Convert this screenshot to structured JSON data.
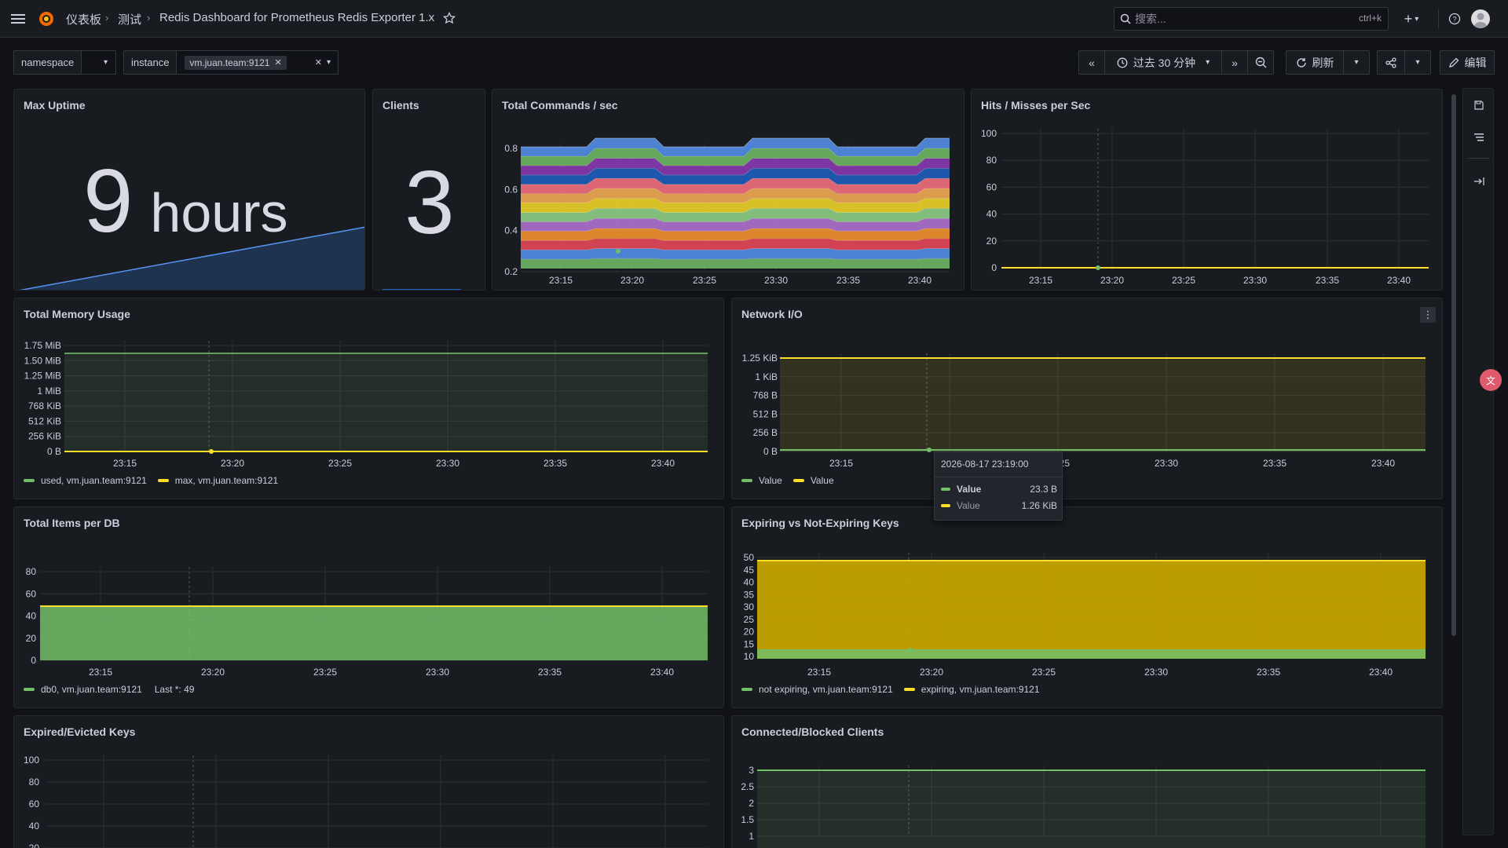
{
  "breadcrumb": {
    "home": "仪表板",
    "folder": "测试",
    "dashboard": "Redis Dashboard for Prometheus Redis Exporter 1.x"
  },
  "search": {
    "placeholder": "搜索...",
    "shortcut": "ctrl+k"
  },
  "variables": {
    "namespace_label": "namespace",
    "instance_label": "instance",
    "instance_value": "vm.juan.team:9121"
  },
  "toolbar": {
    "time_range": "过去 30 分钟",
    "refresh": "刷新",
    "edit": "编辑"
  },
  "colors": {
    "green": "#73bf69",
    "yellow": "#fade2a",
    "blue": "#5794f2",
    "purple": "#b877d9",
    "orange": "#ff9830",
    "red": "#f2495c"
  },
  "x_ticks": [
    "23:15",
    "23:20",
    "23:25",
    "23:30",
    "23:35",
    "23:40"
  ],
  "panels": {
    "max_uptime": {
      "title": "Max Uptime",
      "value": "9",
      "unit": "hours"
    },
    "clients": {
      "title": "Clients",
      "value": "3"
    },
    "commands": {
      "title": "Total Commands / sec"
    },
    "hits": {
      "title": "Hits / Misses per Sec"
    },
    "memory": {
      "title": "Total Memory Usage",
      "legend": [
        "used, vm.juan.team:9121",
        "max, vm.juan.team:9121"
      ]
    },
    "network": {
      "title": "Network I/O",
      "legend": [
        "Value",
        "Value"
      ]
    },
    "items": {
      "title": "Total Items per DB",
      "legend": [
        "db0, vm.juan.team:9121"
      ],
      "last": "Last *: 49"
    },
    "expiring": {
      "title": "Expiring vs Not-Expiring Keys",
      "legend": [
        "not expiring, vm.juan.team:9121",
        "expiring, vm.juan.team:9121"
      ]
    },
    "expired": {
      "title": "Expired/Evicted Keys"
    },
    "connected": {
      "title": "Connected/Blocked Clients"
    }
  },
  "tooltip": {
    "time": "2026-08-17 23:19:00",
    "rows": [
      {
        "label": "Value",
        "value": "23.3 B"
      },
      {
        "label": "Value",
        "value": "1.26 KiB"
      }
    ]
  },
  "chart_data": [
    {
      "type": "area",
      "title": "Total Commands / sec",
      "x": [
        "23:15",
        "23:20",
        "23:25",
        "23:30",
        "23:35",
        "23:40"
      ],
      "yticks": [
        "0.2",
        "0.4",
        "0.6",
        "0.8"
      ],
      "ylim": [
        0,
        0.85
      ]
    },
    {
      "type": "line",
      "title": "Hits / Misses per Sec",
      "yticks": [
        "0",
        "20",
        "40",
        "60",
        "80",
        "100"
      ],
      "ylim": [
        0,
        100
      ],
      "series": [
        {
          "values": [
            0,
            0,
            0,
            0,
            0,
            0
          ]
        }
      ]
    },
    {
      "type": "line",
      "title": "Total Memory Usage",
      "yticks": [
        "0 B",
        "256 KiB",
        "512 KiB",
        "768 KiB",
        "1 MiB",
        "1.25 MiB",
        "1.50 MiB",
        "1.75 MiB"
      ],
      "series": [
        {
          "name": "used, vm.juan.team:9121",
          "values": [
            0,
            0,
            0,
            0,
            0,
            0
          ]
        },
        {
          "name": "max, vm.juan.team:9121",
          "values": [
            1.6,
            1.6,
            1.6,
            1.6,
            1.6,
            1.6
          ]
        }
      ]
    },
    {
      "type": "line",
      "title": "Network I/O",
      "yticks": [
        "0 B",
        "256 B",
        "512 B",
        "768 B",
        "1 KiB",
        "1.25 KiB"
      ],
      "series": [
        {
          "name": "Value",
          "values": [
            23.3,
            23.3,
            23.3,
            23.3,
            23.3,
            23.3
          ]
        },
        {
          "name": "Value",
          "values": [
            1290,
            1290,
            1290,
            1290,
            1290,
            1290
          ]
        }
      ]
    },
    {
      "type": "area",
      "title": "Total Items per DB",
      "yticks": [
        "0",
        "20",
        "40",
        "60",
        "80"
      ],
      "ylim": [
        0,
        90
      ],
      "series": [
        {
          "name": "db0, vm.juan.team:9121",
          "values": [
            49,
            49,
            49,
            49,
            49,
            49
          ]
        }
      ]
    },
    {
      "type": "area",
      "title": "Expiring vs Not-Expiring Keys",
      "yticks": [
        "10",
        "15",
        "20",
        "25",
        "30",
        "35",
        "40",
        "45",
        "50"
      ],
      "series": [
        {
          "name": "not expiring, vm.juan.team:9121",
          "values": [
            12,
            12,
            12,
            12,
            12,
            12
          ]
        },
        {
          "name": "expiring, vm.juan.team:9121",
          "values": [
            49,
            49,
            49,
            49,
            49,
            49
          ]
        }
      ]
    },
    {
      "type": "line",
      "title": "Expired/Evicted Keys",
      "yticks": [
        "20",
        "40",
        "60",
        "80",
        "100"
      ]
    },
    {
      "type": "line",
      "title": "Connected/Blocked Clients",
      "yticks": [
        "1",
        "1.5",
        "2",
        "2.5",
        "3"
      ],
      "series": [
        {
          "values": [
            3,
            3,
            3,
            3,
            3,
            3
          ]
        }
      ]
    }
  ]
}
